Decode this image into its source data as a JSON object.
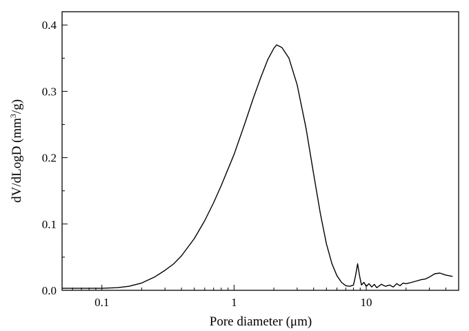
{
  "chart_data": {
    "type": "line",
    "xscale": "log",
    "xlabel": "Pore diameter  (μm)",
    "ylabel_main": "dV/dLogD  (mm",
    "ylabel_sup": "3",
    "ylabel_tail": "/g)",
    "xlim": [
      0.05,
      50
    ],
    "ylim": [
      0,
      0.42
    ],
    "x_ticks": [
      {
        "value": 0.1,
        "label": "0.1"
      },
      {
        "value": 1,
        "label": "1"
      },
      {
        "value": 10,
        "label": "10"
      }
    ],
    "y_ticks": [
      {
        "value": 0.0,
        "label": "0.0"
      },
      {
        "value": 0.1,
        "label": "0.1"
      },
      {
        "value": 0.2,
        "label": "0.2"
      },
      {
        "value": 0.3,
        "label": "0.3"
      },
      {
        "value": 0.4,
        "label": "0.4"
      }
    ],
    "grid": false,
    "legend": "none",
    "series": [
      {
        "color": "#000000",
        "x": [
          0.05,
          0.08,
          0.1,
          0.13,
          0.16,
          0.2,
          0.25,
          0.3,
          0.35,
          0.4,
          0.5,
          0.6,
          0.7,
          0.8,
          1.0,
          1.2,
          1.4,
          1.6,
          1.8,
          2.0,
          2.1,
          2.3,
          2.6,
          3.0,
          3.5,
          4.0,
          4.5,
          5.0,
          5.5,
          6.0,
          6.5,
          7.0,
          7.5,
          8.0,
          8.3,
          8.6,
          8.9,
          9.2,
          9.6,
          10.0,
          10.5,
          11.0,
          11.5,
          12.0,
          13.0,
          14.0,
          15.0,
          16.0,
          17.0,
          18.0,
          19.0,
          20.0,
          22.0,
          24.0,
          26.0,
          28.0,
          30.0,
          33.0,
          36.0,
          40.0,
          45.0
        ],
        "y": [
          0.003,
          0.003,
          0.003,
          0.004,
          0.006,
          0.011,
          0.02,
          0.03,
          0.04,
          0.052,
          0.078,
          0.105,
          0.132,
          0.158,
          0.205,
          0.25,
          0.29,
          0.322,
          0.348,
          0.365,
          0.37,
          0.366,
          0.35,
          0.31,
          0.245,
          0.175,
          0.115,
          0.07,
          0.04,
          0.022,
          0.012,
          0.007,
          0.006,
          0.008,
          0.022,
          0.04,
          0.022,
          0.008,
          0.012,
          0.006,
          0.01,
          0.005,
          0.009,
          0.004,
          0.009,
          0.006,
          0.008,
          0.005,
          0.01,
          0.007,
          0.011,
          0.01,
          0.012,
          0.014,
          0.016,
          0.017,
          0.02,
          0.025,
          0.026,
          0.023,
          0.021
        ]
      }
    ]
  }
}
